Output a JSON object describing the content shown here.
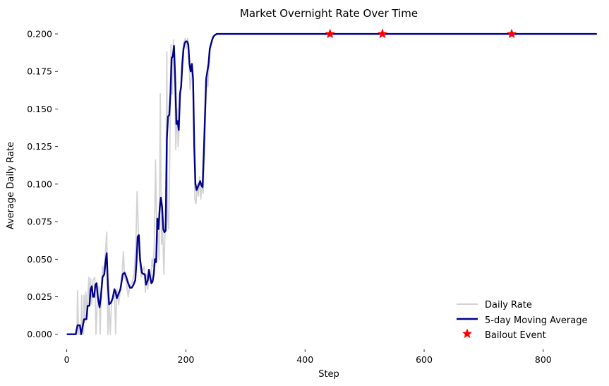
{
  "chart_data": {
    "type": "line",
    "title": "Market Overnight Rate Over Time",
    "xlabel": "Step",
    "ylabel": "Average Daily Rate",
    "xlim": [
      -15,
      895
    ],
    "ylim": [
      -0.01,
      0.208
    ],
    "x_ticks": [
      0,
      200,
      400,
      600,
      800
    ],
    "x_tick_labels": [
      "0",
      "200",
      "400",
      "600",
      "800"
    ],
    "y_ticks": [
      0.0,
      0.025,
      0.05,
      0.075,
      0.1,
      0.125,
      0.15,
      0.175,
      0.2
    ],
    "y_tick_labels": [
      "0.000",
      "0.025",
      "0.050",
      "0.075",
      "0.100",
      "0.125",
      "0.150",
      "0.175",
      "0.200"
    ],
    "grid": false,
    "legend_position": "lower-right",
    "series": [
      {
        "name": "Daily Rate",
        "color": "#d3d3d3",
        "points": [
          [
            0,
            0
          ],
          [
            10,
            0
          ],
          [
            17,
            0
          ],
          [
            18,
            0.029
          ],
          [
            20,
            0
          ],
          [
            24,
            0
          ],
          [
            25,
            0.026
          ],
          [
            26,
            0
          ],
          [
            28,
            0
          ],
          [
            29,
            0.026
          ],
          [
            30,
            0.008
          ],
          [
            32,
            0.028
          ],
          [
            34,
            0.012
          ],
          [
            37,
            0.038
          ],
          [
            38,
            0.02
          ],
          [
            40,
            0.037
          ],
          [
            42,
            0.02
          ],
          [
            44,
            0.036
          ],
          [
            47,
            0.038
          ],
          [
            49,
            0.0
          ],
          [
            51,
            0.02
          ],
          [
            54,
            0.032
          ],
          [
            56,
            0.0
          ],
          [
            58,
            0.03
          ],
          [
            60,
            0.045
          ],
          [
            62,
            0.04
          ],
          [
            65,
            0.055
          ],
          [
            67,
            0.068
          ],
          [
            69,
            0.0
          ],
          [
            71,
            0.022
          ],
          [
            73,
            0.0
          ],
          [
            75,
            0.02
          ],
          [
            78,
            0.025
          ],
          [
            80,
            0.03
          ],
          [
            82,
            0.0
          ],
          [
            84,
            0.03
          ],
          [
            87,
            0.02
          ],
          [
            90,
            0.03
          ],
          [
            93,
            0.04
          ],
          [
            95,
            0.055
          ],
          [
            97,
            0.038
          ],
          [
            100,
            0.035
          ],
          [
            103,
            0.025
          ],
          [
            106,
            0.032
          ],
          [
            110,
            0.035
          ],
          [
            113,
            0.04
          ],
          [
            116,
            0.06
          ],
          [
            118,
            0.095
          ],
          [
            120,
            0.07
          ],
          [
            122,
            0.05
          ],
          [
            125,
            0.038
          ],
          [
            128,
            0.043
          ],
          [
            130,
            0.045
          ],
          [
            132,
            0.028
          ],
          [
            134,
            0.04
          ],
          [
            136,
            0.03
          ],
          [
            138,
            0.04
          ],
          [
            141,
            0.035
          ],
          [
            143,
            0.05
          ],
          [
            145,
            0.045
          ],
          [
            147,
            0.06
          ],
          [
            149,
            0.116
          ],
          [
            151,
            0.07
          ],
          [
            153,
            0.068
          ],
          [
            155,
            0.05
          ],
          [
            157,
            0.16
          ],
          [
            159,
            0.06
          ],
          [
            161,
            0.07
          ],
          [
            163,
            0.04
          ],
          [
            164,
            0.055
          ],
          [
            166,
            0.085
          ],
          [
            168,
            0.188
          ],
          [
            169,
            0.08
          ],
          [
            171,
            0.07
          ],
          [
            173,
            0.12
          ],
          [
            175,
            0.193
          ],
          [
            177,
            0.16
          ],
          [
            179,
            0.196
          ],
          [
            181,
            0.18
          ],
          [
            183,
            0.123
          ],
          [
            185,
            0.15
          ],
          [
            187,
            0.125
          ],
          [
            189,
            0.14
          ],
          [
            191,
            0.16
          ],
          [
            193,
            0.18
          ],
          [
            195,
            0.19
          ],
          [
            197,
            0.194
          ],
          [
            199,
            0.197
          ],
          [
            201,
            0.19
          ],
          [
            203,
            0.197
          ],
          [
            205,
            0.185
          ],
          [
            207,
            0.163
          ],
          [
            209,
            0.17
          ],
          [
            211,
            0.18
          ],
          [
            213,
            0.16
          ],
          [
            215,
            0.09
          ],
          [
            217,
            0.087
          ],
          [
            219,
            0.1
          ],
          [
            221,
            0.092
          ],
          [
            223,
            0.105
          ],
          [
            225,
            0.09
          ],
          [
            227,
            0.1
          ],
          [
            229,
            0.094
          ],
          [
            231,
            0.12
          ],
          [
            233,
            0.15
          ],
          [
            235,
            0.17
          ],
          [
            237,
            0.165
          ],
          [
            239,
            0.18
          ],
          [
            241,
            0.19
          ],
          [
            243,
            0.195
          ],
          [
            246,
            0.198
          ],
          [
            250,
            0.2
          ],
          [
            260,
            0.2
          ],
          [
            890,
            0.2
          ]
        ]
      },
      {
        "name": "5-day Moving Average",
        "color": "#00008b",
        "points": [
          [
            0,
            0
          ],
          [
            15,
            0
          ],
          [
            18,
            0.006
          ],
          [
            22,
            0.006
          ],
          [
            24,
            0
          ],
          [
            27,
            0.006
          ],
          [
            29,
            0.01
          ],
          [
            33,
            0.01
          ],
          [
            35,
            0.019
          ],
          [
            38,
            0.019
          ],
          [
            40,
            0.03
          ],
          [
            42,
            0.032
          ],
          [
            44,
            0.025
          ],
          [
            46,
            0.025
          ],
          [
            48,
            0.033
          ],
          [
            50,
            0.034
          ],
          [
            52,
            0.025
          ],
          [
            55,
            0.018
          ],
          [
            57,
            0.024
          ],
          [
            60,
            0.038
          ],
          [
            63,
            0.04
          ],
          [
            65,
            0.048
          ],
          [
            67,
            0.054
          ],
          [
            69,
            0.033
          ],
          [
            71,
            0.02
          ],
          [
            74,
            0.021
          ],
          [
            77,
            0.024
          ],
          [
            80,
            0.03
          ],
          [
            82,
            0.028
          ],
          [
            84,
            0.024
          ],
          [
            87,
            0.027
          ],
          [
            90,
            0.03
          ],
          [
            92,
            0.035
          ],
          [
            94,
            0.04
          ],
          [
            97,
            0.041
          ],
          [
            100,
            0.038
          ],
          [
            103,
            0.034
          ],
          [
            106,
            0.031
          ],
          [
            109,
            0.031
          ],
          [
            112,
            0.033
          ],
          [
            115,
            0.036
          ],
          [
            117,
            0.048
          ],
          [
            119,
            0.065
          ],
          [
            121,
            0.066
          ],
          [
            123,
            0.05
          ],
          [
            126,
            0.041
          ],
          [
            129,
            0.04
          ],
          [
            131,
            0.04
          ],
          [
            133,
            0.033
          ],
          [
            136,
            0.036
          ],
          [
            138,
            0.043
          ],
          [
            140,
            0.038
          ],
          [
            142,
            0.034
          ],
          [
            144,
            0.035
          ],
          [
            146,
            0.04
          ],
          [
            148,
            0.05
          ],
          [
            150,
            0.048
          ],
          [
            152,
            0.077
          ],
          [
            154,
            0.07
          ],
          [
            156,
            0.084
          ],
          [
            158,
            0.091
          ],
          [
            160,
            0.085
          ],
          [
            162,
            0.07
          ],
          [
            164,
            0.068
          ],
          [
            166,
            0.069
          ],
          [
            168,
            0.13
          ],
          [
            170,
            0.145
          ],
          [
            172,
            0.146
          ],
          [
            174,
            0.16
          ],
          [
            176,
            0.184
          ],
          [
            178,
            0.185
          ],
          [
            180,
            0.192
          ],
          [
            182,
            0.17
          ],
          [
            184,
            0.14
          ],
          [
            186,
            0.142
          ],
          [
            188,
            0.136
          ],
          [
            190,
            0.16
          ],
          [
            192,
            0.165
          ],
          [
            194,
            0.18
          ],
          [
            196,
            0.19
          ],
          [
            198,
            0.194
          ],
          [
            200,
            0.195
          ],
          [
            202,
            0.195
          ],
          [
            204,
            0.193
          ],
          [
            206,
            0.18
          ],
          [
            208,
            0.175
          ],
          [
            210,
            0.18
          ],
          [
            212,
            0.17
          ],
          [
            214,
            0.125
          ],
          [
            216,
            0.1
          ],
          [
            218,
            0.096
          ],
          [
            220,
            0.098
          ],
          [
            222,
            0.1
          ],
          [
            224,
            0.102
          ],
          [
            226,
            0.099
          ],
          [
            228,
            0.098
          ],
          [
            230,
            0.12
          ],
          [
            232,
            0.145
          ],
          [
            234,
            0.17
          ],
          [
            236,
            0.175
          ],
          [
            238,
            0.18
          ],
          [
            240,
            0.19
          ],
          [
            242,
            0.193
          ],
          [
            244,
            0.196
          ],
          [
            246,
            0.198
          ],
          [
            248,
            0.199
          ],
          [
            252,
            0.2
          ],
          [
            260,
            0.2
          ],
          [
            890,
            0.2
          ]
        ]
      }
    ],
    "markers": {
      "name": "Bailout Event",
      "color": "#ff0000",
      "points": [
        [
          442,
          0.2
        ],
        [
          530,
          0.2
        ],
        [
          747,
          0.2
        ]
      ]
    }
  }
}
